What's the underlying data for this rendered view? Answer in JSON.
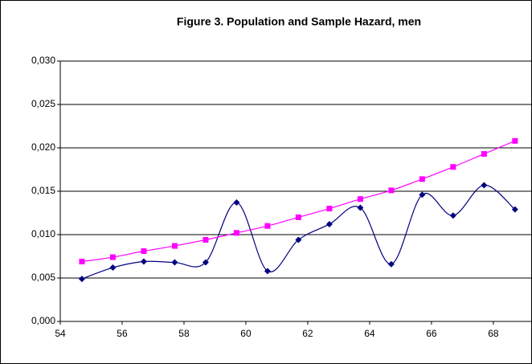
{
  "chart_data": {
    "type": "line",
    "title": "Figure 3. Population and Sample Hazard, men",
    "x": [
      54.7,
      55.7,
      56.7,
      57.7,
      58.7,
      59.7,
      60.7,
      61.7,
      62.7,
      63.7,
      64.7,
      65.7,
      66.7,
      67.7,
      68.7
    ],
    "series": [
      {
        "color": "#000080",
        "marker": "diamond",
        "values": [
          0.0049,
          0.0062,
          0.0069,
          0.0068,
          0.0068,
          0.0137,
          0.0058,
          0.0094,
          0.0112,
          0.0131,
          0.0066,
          0.0146,
          0.0122,
          0.0157,
          0.0129
        ]
      },
      {
        "color": "#ff00ff",
        "marker": "square",
        "values": [
          0.0069,
          0.0074,
          0.0081,
          0.0087,
          0.0094,
          0.0102,
          0.011,
          0.012,
          0.013,
          0.0141,
          0.0151,
          0.0164,
          0.0178,
          0.0193,
          0.0208
        ]
      }
    ],
    "xlim": [
      54,
      69.25
    ],
    "xticks": [
      54,
      56,
      58,
      60,
      62,
      64,
      66,
      68
    ],
    "ylim": [
      0,
      0.03
    ],
    "yticks": [
      {
        "value": 0,
        "label": "0,000"
      },
      {
        "value": 0.005,
        "label": "0,005"
      },
      {
        "value": 0.01,
        "label": "0,010"
      },
      {
        "value": 0.015,
        "label": "0,015"
      },
      {
        "value": 0.02,
        "label": "0,020"
      },
      {
        "value": 0.025,
        "label": "0,025"
      },
      {
        "value": 0.03,
        "label": "0,030"
      }
    ],
    "grid": true,
    "smooth": true
  }
}
